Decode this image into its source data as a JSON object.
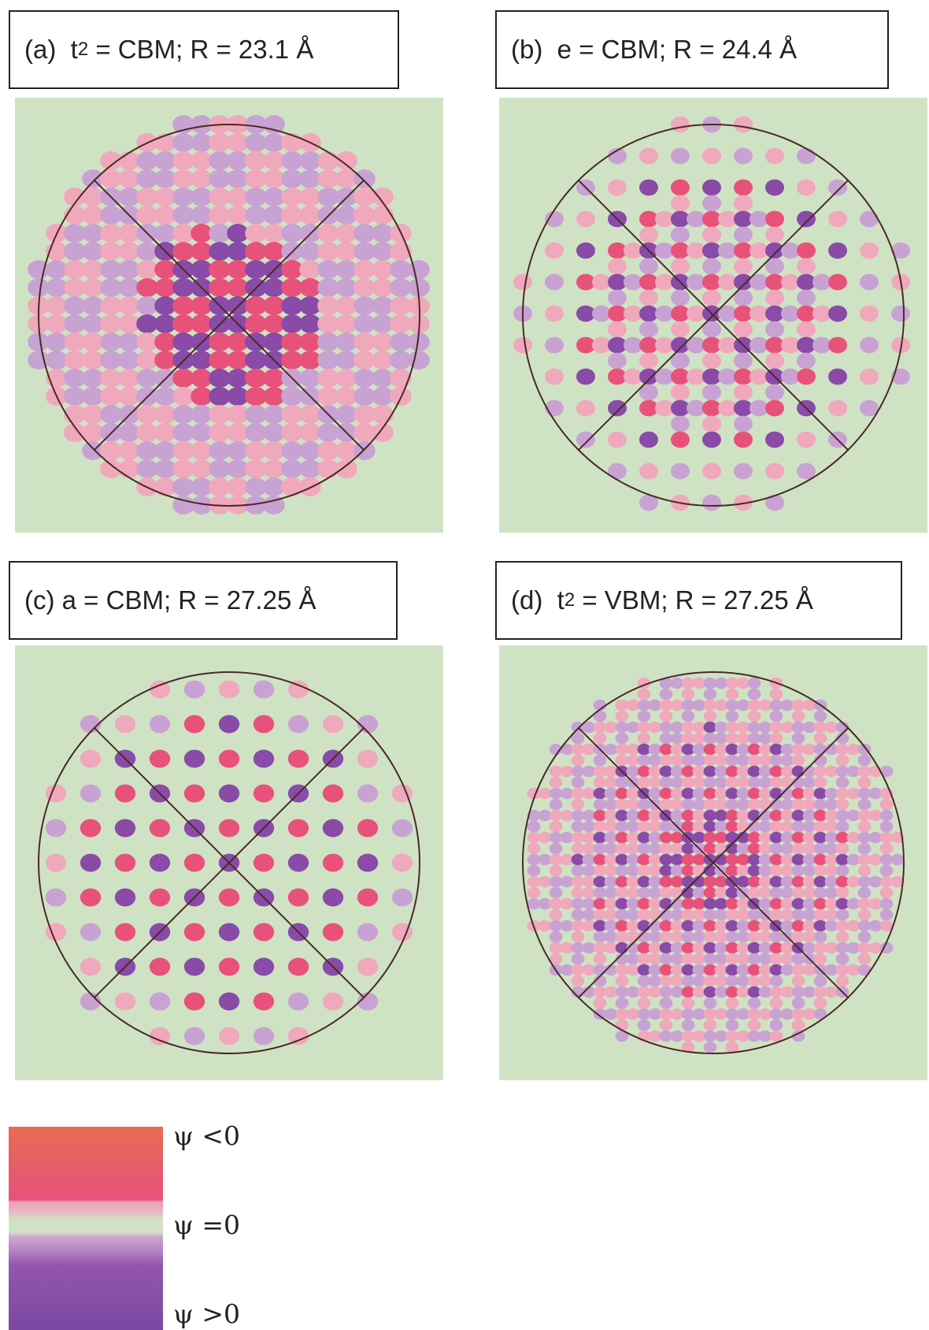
{
  "panels": [
    {
      "label": {
        "pre": "(a)  t",
        "sub": "2",
        "post": " = CBM; R = 23.1 Å"
      }
    },
    {
      "label": {
        "pre": "(b)  e = CBM; R = 24.4 Å"
      }
    },
    {
      "label": {
        "pre": "(c) a = CBM; R = 27.25 Å"
      }
    },
    {
      "label": {
        "pre": "(d)  t",
        "sub": "2",
        "post": " = VBM; R = 27.25 Å"
      }
    }
  ],
  "legend": {
    "labels": [
      "ψ <0",
      "ψ =0",
      "ψ >0"
    ]
  }
}
